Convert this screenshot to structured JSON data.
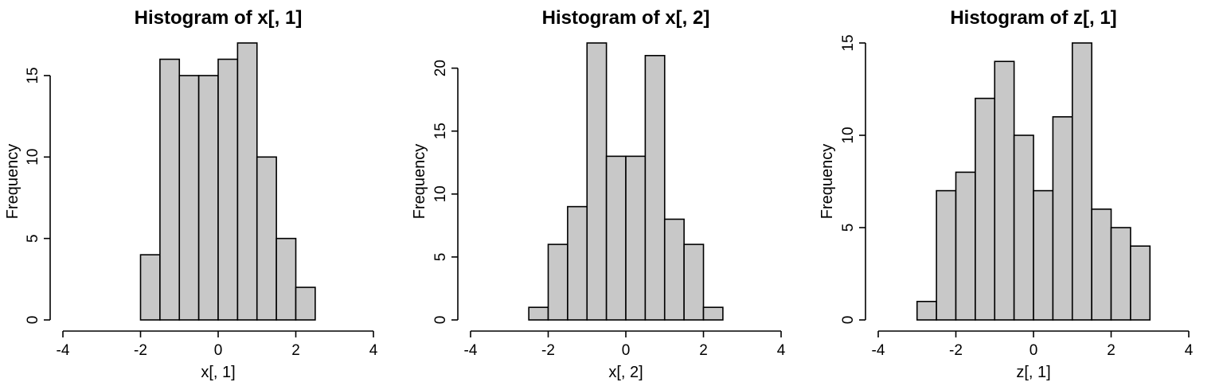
{
  "chart_data": [
    {
      "type": "bar",
      "title": "Histogram of x[, 1]",
      "xlabel": "x[, 1]",
      "ylabel": "Frequency",
      "xlim": [
        -4,
        4
      ],
      "ylim": [
        0,
        17
      ],
      "x_ticks": [
        -4,
        -2,
        0,
        2,
        4
      ],
      "y_ticks": [
        0,
        5,
        10,
        15
      ],
      "bin_edges": [
        -4.0,
        -3.5,
        -3.0,
        -2.5,
        -2.0,
        -1.5,
        -1.0,
        -0.5,
        0.0,
        0.5,
        1.0,
        1.5,
        2.0,
        2.5,
        3.0,
        3.5,
        4.0
      ],
      "values": [
        0,
        0,
        0,
        0,
        4,
        16,
        15,
        15,
        16,
        17,
        10,
        5,
        2,
        0,
        0,
        0
      ],
      "grid": false,
      "legend": "none"
    },
    {
      "type": "bar",
      "title": "Histogram of x[, 2]",
      "xlabel": "x[, 2]",
      "ylabel": "Frequency",
      "xlim": [
        -4,
        4
      ],
      "ylim": [
        0,
        22
      ],
      "x_ticks": [
        -4,
        -2,
        0,
        2,
        4
      ],
      "y_ticks": [
        0,
        5,
        10,
        15,
        20
      ],
      "bin_edges": [
        -4.0,
        -3.5,
        -3.0,
        -2.5,
        -2.0,
        -1.5,
        -1.0,
        -0.5,
        0.0,
        0.5,
        1.0,
        1.5,
        2.0,
        2.5,
        3.0,
        3.5,
        4.0
      ],
      "values": [
        0,
        0,
        0,
        1,
        6,
        9,
        22,
        13,
        13,
        21,
        8,
        6,
        1,
        0,
        0,
        0
      ],
      "grid": false,
      "legend": "none"
    },
    {
      "type": "bar",
      "title": "Histogram of z[, 1]",
      "xlabel": "z[, 1]",
      "ylabel": "Frequency",
      "xlim": [
        -4,
        4
      ],
      "ylim": [
        0,
        15
      ],
      "x_ticks": [
        -4,
        -2,
        0,
        2,
        4
      ],
      "y_ticks": [
        0,
        5,
        10,
        15
      ],
      "bin_edges": [
        -4.0,
        -3.5,
        -3.0,
        -2.5,
        -2.0,
        -1.5,
        -1.0,
        -0.5,
        0.0,
        0.5,
        1.0,
        1.5,
        2.0,
        2.5,
        3.0,
        3.5,
        4.0
      ],
      "values": [
        0,
        0,
        1,
        7,
        8,
        12,
        14,
        10,
        7,
        11,
        15,
        6,
        5,
        4,
        0,
        0
      ],
      "grid": false,
      "legend": "none"
    }
  ]
}
